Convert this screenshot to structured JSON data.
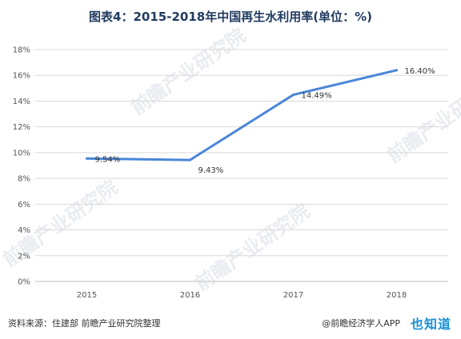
{
  "chart_data": {
    "type": "line",
    "title": "图表4：2015-2018年中国再生水利用率(单位：%)",
    "categories": [
      "2015",
      "2016",
      "2017",
      "2018"
    ],
    "series": [
      {
        "values": [
          9.54,
          9.43,
          14.49,
          16.4
        ],
        "data_labels": [
          "9.54%",
          "9.43%",
          "14.49%",
          "16.40%"
        ],
        "color": "#4a86d8"
      }
    ],
    "ylim": [
      0,
      18
    ],
    "yticks": [
      0,
      2,
      4,
      6,
      8,
      10,
      12,
      14,
      16,
      18
    ],
    "ytick_labels": [
      "0%",
      "2%",
      "4%",
      "6%",
      "8%",
      "10%",
      "12%",
      "14%",
      "16%",
      "18%"
    ],
    "grid": true,
    "xlabel": "",
    "ylabel": ""
  },
  "footer": {
    "source": "资料来源：住建部 前瞻产业研究院整理",
    "brand": "@前瞻经济学人APP",
    "logo": "也知道"
  },
  "watermark": {
    "text": "前瞻产业研究院"
  },
  "colors": {
    "title": "#1f3a5f",
    "line": "#4a86d8",
    "grid": "#d9d9d9"
  }
}
